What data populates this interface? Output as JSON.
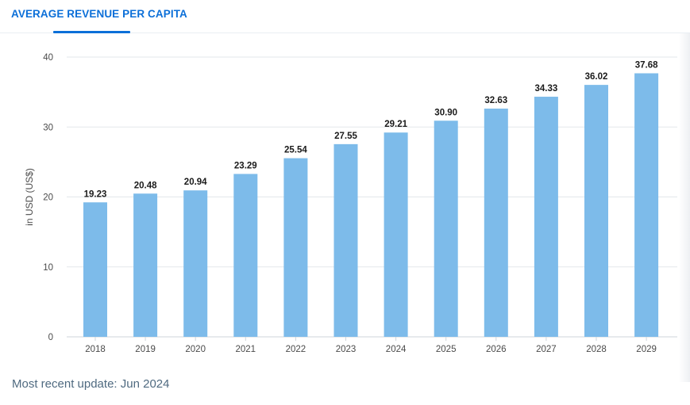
{
  "header": {
    "tab_title": "AVERAGE REVENUE PER CAPITA"
  },
  "colors": {
    "accent": "#0b6fd8",
    "bar": "#7dbbea",
    "grid": "#e3e7eb",
    "axis_text": "#4a4a4a",
    "label_text": "#1a1a1a"
  },
  "chart_data": {
    "type": "bar",
    "title": "",
    "xlabel": "",
    "ylabel": "in USD (US$)",
    "categories": [
      "2018",
      "2019",
      "2020",
      "2021",
      "2022",
      "2023",
      "2024",
      "2025",
      "2026",
      "2027",
      "2028",
      "2029"
    ],
    "values": [
      19.23,
      20.48,
      20.94,
      23.29,
      25.54,
      27.55,
      29.21,
      30.9,
      32.63,
      34.33,
      36.02,
      37.68
    ],
    "value_labels": [
      "19.23",
      "20.48",
      "20.94",
      "23.29",
      "25.54",
      "27.55",
      "29.21",
      "30.90",
      "32.63",
      "34.33",
      "36.02",
      "37.68"
    ],
    "ylim": [
      0,
      40
    ],
    "yticks": [
      0,
      10,
      20,
      30,
      40
    ],
    "grid": true,
    "legend": "none"
  },
  "footer": {
    "update_text": "Most recent update: Jun 2024"
  }
}
